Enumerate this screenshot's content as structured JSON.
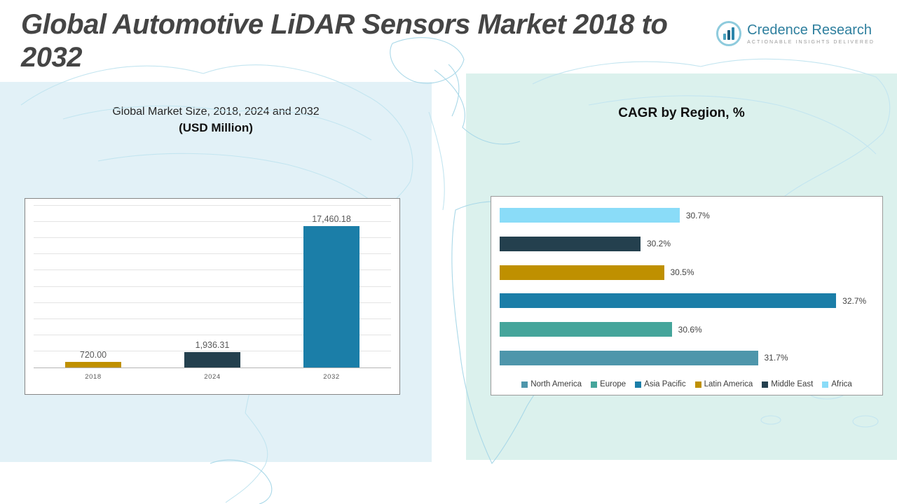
{
  "page": {
    "title": "Global Automotive LiDAR Sensors Market 2018 to 2032"
  },
  "logo": {
    "name": "Credence Research",
    "tagline": "ACTIONABLE INSIGHTS DELIVERED"
  },
  "colors": {
    "gold": "#bf9000",
    "dark_navy": "#24404e",
    "blue": "#1b7ea8",
    "teal": "#45a59b",
    "steel": "#4e96ab",
    "light_blue": "#8adcf8",
    "left_panel_bg": "#e2f1f7",
    "right_panel_bg": "#dbf1ed"
  },
  "chart_data": [
    {
      "type": "bar",
      "title": "Global Market Size, 2018, 2024 and 2032",
      "subtitle": "(USD Million)",
      "categories": [
        "2018",
        "2024",
        "2032"
      ],
      "values": [
        720.0,
        1936.31,
        17460.18
      ],
      "value_labels": [
        "720.00",
        "1,936.31",
        "17,460.18"
      ],
      "colors": [
        "#bf9000",
        "#24404e",
        "#1b7ea8"
      ],
      "xlabel": "",
      "ylabel": "",
      "ylim": [
        0,
        20000
      ],
      "grid": true,
      "legend_position": "none"
    },
    {
      "type": "bar",
      "orientation": "horizontal",
      "title": "CAGR by Region, %",
      "rows": [
        {
          "region": "Africa",
          "value": 30.7,
          "label": "30.7%",
          "color": "#8adcf8"
        },
        {
          "region": "Middle East",
          "value": 30.2,
          "label": "30.2%",
          "color": "#24404e"
        },
        {
          "region": "Latin America",
          "value": 30.5,
          "label": "30.5%",
          "color": "#bf9000"
        },
        {
          "region": "Asia Pacific",
          "value": 32.7,
          "label": "32.7%",
          "color": "#1b7ea8"
        },
        {
          "region": "Europe",
          "value": 30.6,
          "label": "30.6%",
          "color": "#45a59b"
        },
        {
          "region": "North America",
          "value": 31.7,
          "label": "31.7%",
          "color": "#4e96ab"
        }
      ],
      "xlim": [
        28.4,
        33.2
      ],
      "grid": false,
      "legend_position": "bottom",
      "legend": [
        {
          "label": "North America",
          "color": "#4e96ab"
        },
        {
          "label": "Europe",
          "color": "#45a59b"
        },
        {
          "label": "Asia Pacific",
          "color": "#1b7ea8"
        },
        {
          "label": "Latin America",
          "color": "#bf9000"
        },
        {
          "label": "Middle East",
          "color": "#24404e"
        },
        {
          "label": "Africa",
          "color": "#8adcf8"
        }
      ]
    }
  ]
}
